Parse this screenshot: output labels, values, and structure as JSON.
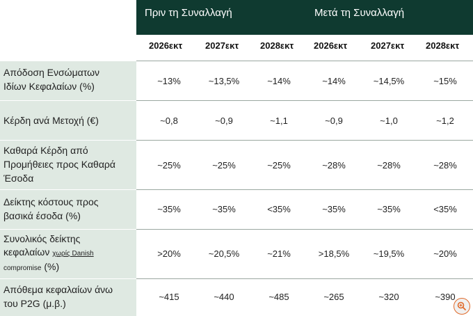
{
  "header": {
    "before": "Πριν τη Συναλλαγή",
    "after": "Μετά τη Συναλλαγή"
  },
  "years": [
    "2026εκτ",
    "2027εκτ",
    "2028εκτ",
    "2026εκτ",
    "2027εκτ",
    "2028εκτ"
  ],
  "rows": [
    {
      "label_lines": [
        "Απόδοση Ενσώματων",
        "Ιδίων Κεφαλαίων (%)"
      ],
      "values": [
        "~13%",
        "~13,5%",
        "~14%",
        "~14%",
        "~14,5%",
        "~15%"
      ]
    },
    {
      "label_lines": [
        "Κέρδη ανά Μετοχή (€)"
      ],
      "values": [
        "~0,8",
        "~0,9",
        "~1,1",
        "~0,9",
        "~1,0",
        "~1,2"
      ]
    },
    {
      "label_lines": [
        "Καθαρά Κέρδη από",
        "Προμήθειες προς Καθαρά",
        "Έσοδα"
      ],
      "values": [
        "~25%",
        "~25%",
        "~25%",
        "~28%",
        "~28%",
        "~28%"
      ]
    },
    {
      "label_lines": [
        "Δείκτης κόστους προς",
        "βασικά έσοδα (%)"
      ],
      "values": [
        "~35%",
        "~35%",
        "<35%",
        "~35%",
        "~35%",
        "<35%"
      ]
    },
    {
      "label_lines": [
        "Συνολικός δείκτης",
        "κεφαλαίων",
        "χωρίς Danish",
        "compromise",
        "(%)"
      ],
      "values": [
        ">20%",
        "~20,5%",
        "~21%",
        ">18,5%",
        "~19,5%",
        "~20%"
      ]
    },
    {
      "label_lines": [
        "Απόθεμα κεφαλαίων άνω",
        "του P2G (μ.β.)"
      ],
      "values": [
        "~415",
        "~440",
        "~485",
        "~265",
        "~320",
        "~390"
      ]
    }
  ],
  "icons": {
    "zoom": "zoom-in-icon"
  },
  "colors": {
    "header_bg": "#0f3a30",
    "label_bg": "#dfe9e2",
    "zoom_accent": "#e06a2a"
  }
}
